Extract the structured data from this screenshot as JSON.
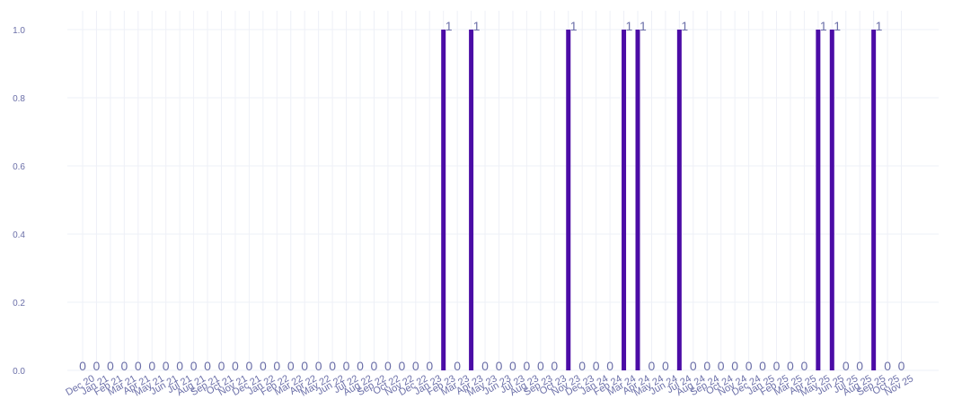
{
  "chart_data": {
    "type": "bar",
    "title": "",
    "xlabel": "",
    "ylabel": "",
    "ylim": [
      0,
      1.05
    ],
    "yticks": [
      "0.0",
      "0.2",
      "0.4",
      "0.6",
      "0.8",
      "1.0"
    ],
    "ytick_values": [
      0,
      0.2,
      0.4,
      0.6,
      0.8,
      1.0
    ],
    "grid": true,
    "bar_color": "#4b0ca6",
    "label_color": "#6b6fa8",
    "categories": [
      "Dec 20",
      "Jan 21",
      "Feb 21",
      "Mar 21",
      "Apr 21",
      "May 21",
      "Jun 21",
      "Jul 21",
      "Aug 21",
      "Sep 21",
      "Oct 21",
      "Nov 21",
      "Dec 21",
      "Jan 22",
      "Feb 22",
      "Mar 22",
      "Apr 22",
      "May 22",
      "Jun 22",
      "Jul 22",
      "Aug 22",
      "Sep 22",
      "Oct 22",
      "Nov 22",
      "Dec 22",
      "Jan 23",
      "Feb 23",
      "Mar 23",
      "Apr 23",
      "May 23",
      "Jun 23",
      "Jul 23",
      "Aug 23",
      "Sep 23",
      "Oct 23",
      "Nov 23",
      "Dec 23",
      "Jan 24",
      "Feb 24",
      "Mar 24",
      "Apr 24",
      "May 24",
      "Jun 24",
      "Jul 24",
      "Aug 24",
      "Sep 24",
      "Oct 24",
      "Nov 24",
      "Dec 24",
      "Jan 25",
      "Feb 25",
      "Mar 25",
      "Apr 25",
      "May 25",
      "Jun 25",
      "Jul 25",
      "Aug 25",
      "Sep 25",
      "Oct 25",
      "Nov 25"
    ],
    "values": [
      0,
      0,
      0,
      0,
      0,
      0,
      0,
      0,
      0,
      0,
      0,
      0,
      0,
      0,
      0,
      0,
      0,
      0,
      0,
      0,
      0,
      0,
      0,
      0,
      0,
      0,
      1,
      0,
      1,
      0,
      0,
      0,
      0,
      0,
      0,
      1,
      0,
      0,
      0,
      1,
      1,
      0,
      0,
      1,
      0,
      0,
      0,
      0,
      0,
      0,
      0,
      0,
      0,
      1,
      1,
      0,
      0,
      1,
      0,
      0
    ]
  }
}
